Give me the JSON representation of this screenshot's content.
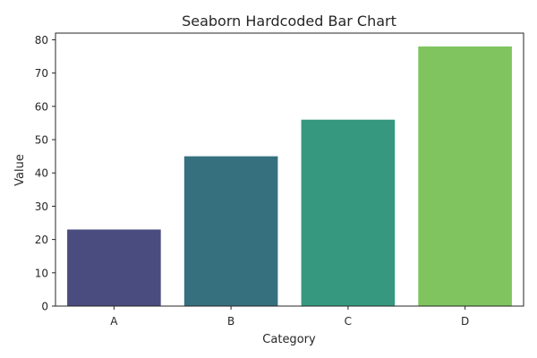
{
  "chart_data": {
    "type": "bar",
    "title": "Seaborn Hardcoded Bar Chart",
    "xlabel": "Category",
    "ylabel": "Value",
    "categories": [
      "A",
      "B",
      "C",
      "D"
    ],
    "values": [
      23,
      45,
      56,
      78
    ],
    "colors": [
      "#4a4b7f",
      "#36707f",
      "#35987f",
      "#7fc45f"
    ],
    "ylim": [
      0,
      82
    ],
    "yticks": [
      0,
      10,
      20,
      30,
      40,
      50,
      60,
      70,
      80
    ],
    "grid": false,
    "legend": "none"
  }
}
